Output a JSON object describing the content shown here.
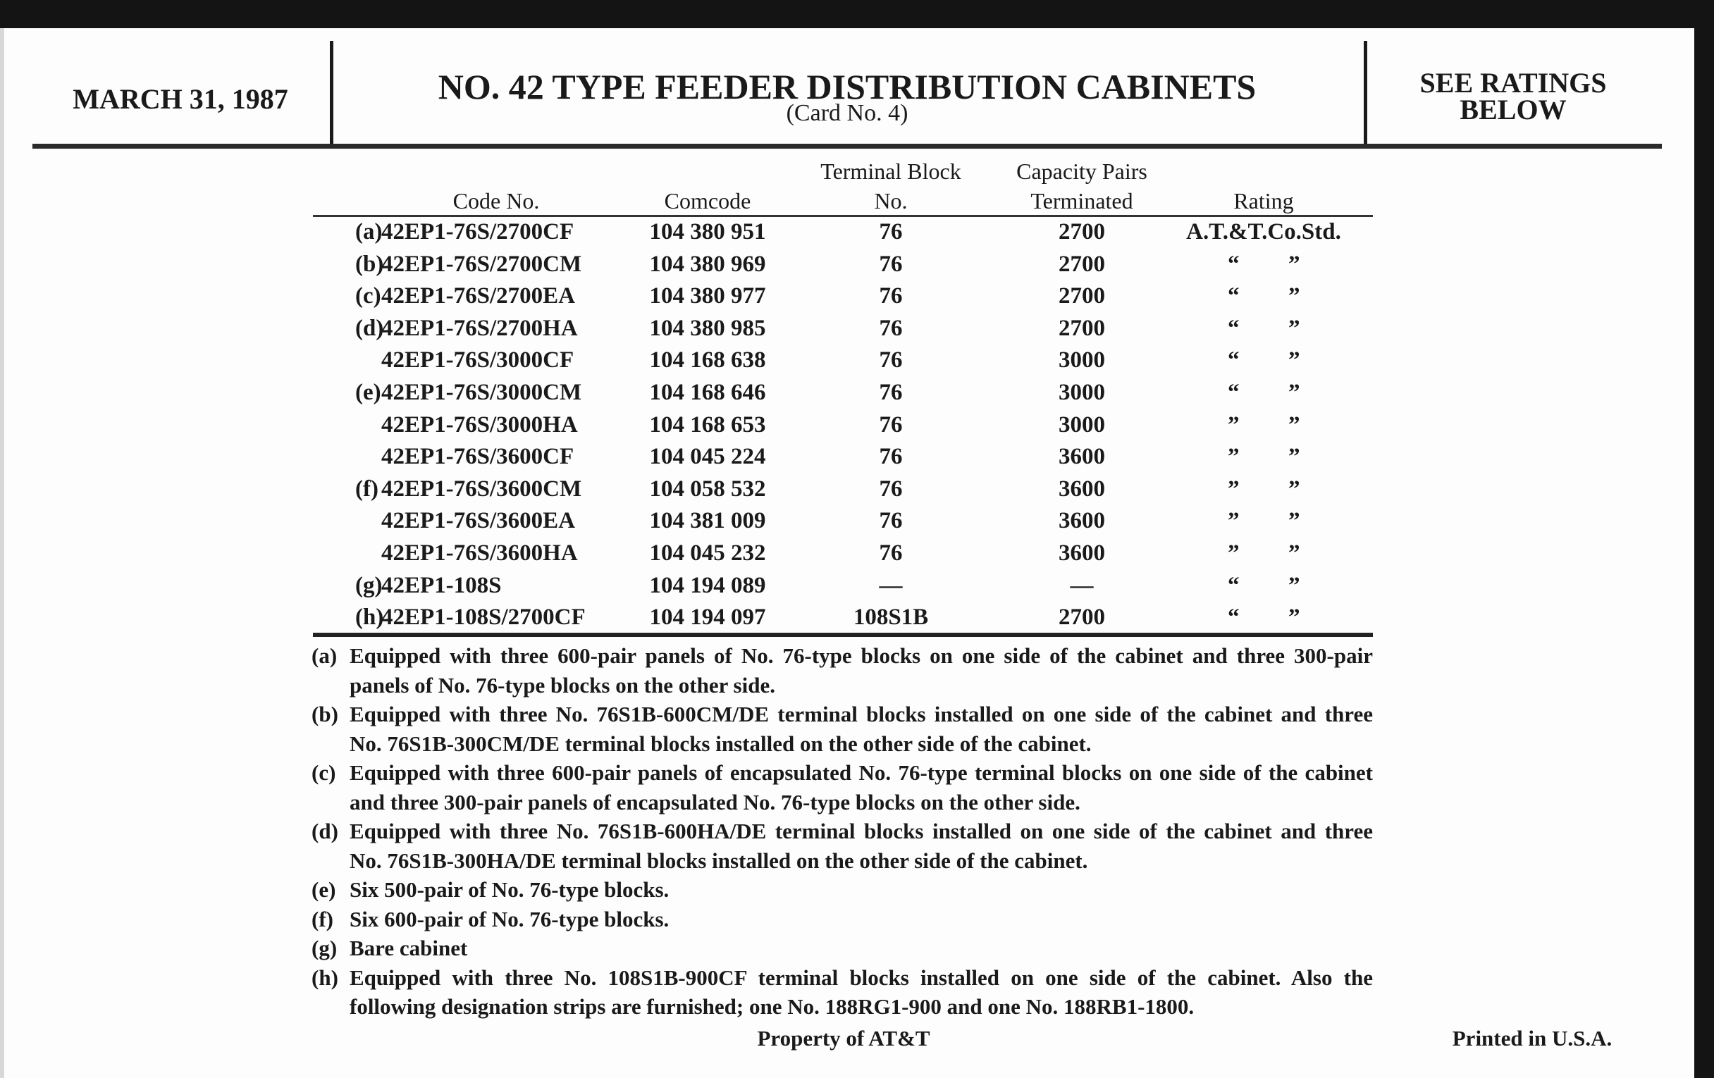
{
  "header": {
    "date": "MARCH 31, 1987",
    "title": "NO. 42 TYPE FEEDER DISTRIBUTION CABINETS",
    "subtitle": "(Card No. 4)",
    "ratings_line1": "SEE RATINGS",
    "ratings_line2": "BELOW"
  },
  "table": {
    "columns": {
      "code": "Code No.",
      "comcode": "Comcode",
      "terminal_1": "Terminal Block",
      "terminal_2": "No.",
      "capacity_1": "Capacity Pairs",
      "capacity_2": "Terminated",
      "rating": "Rating"
    },
    "rows": [
      {
        "prefix": "(a)",
        "code": "42EP1-76S/2700CF",
        "comcode": "104 380 951",
        "terminal": "76",
        "capacity": "2700",
        "rating": "A.T.&T.Co.Std.",
        "ditto": [
          "",
          ""
        ]
      },
      {
        "prefix": "(b)",
        "code": "42EP1-76S/2700CM",
        "comcode": "104 380 969",
        "terminal": "76",
        "capacity": "2700",
        "rating": "",
        "ditto": [
          "“",
          "”"
        ]
      },
      {
        "prefix": "(c)",
        "code": "42EP1-76S/2700EA",
        "comcode": "104 380 977",
        "terminal": "76",
        "capacity": "2700",
        "rating": "",
        "ditto": [
          "“",
          "”"
        ]
      },
      {
        "prefix": "(d)",
        "code": "42EP1-76S/2700HA",
        "comcode": "104 380 985",
        "terminal": "76",
        "capacity": "2700",
        "rating": "",
        "ditto": [
          "“",
          "”"
        ]
      },
      {
        "prefix": "",
        "code": "42EP1-76S/3000CF",
        "comcode": "104 168 638",
        "terminal": "76",
        "capacity": "3000",
        "rating": "",
        "ditto": [
          "“",
          "”"
        ]
      },
      {
        "prefix": "(e)",
        "code": "42EP1-76S/3000CM",
        "comcode": "104 168 646",
        "terminal": "76",
        "capacity": "3000",
        "rating": "",
        "ditto": [
          "“",
          "”"
        ]
      },
      {
        "prefix": "",
        "code": "42EP1-76S/3000HA",
        "comcode": "104 168 653",
        "terminal": "76",
        "capacity": "3000",
        "rating": "",
        "ditto": [
          "”",
          "”"
        ]
      },
      {
        "prefix": "",
        "code": "42EP1-76S/3600CF",
        "comcode": "104 045 224",
        "terminal": "76",
        "capacity": "3600",
        "rating": "",
        "ditto": [
          "”",
          "”"
        ]
      },
      {
        "prefix": "(f)",
        "code": "42EP1-76S/3600CM",
        "comcode": "104 058 532",
        "terminal": "76",
        "capacity": "3600",
        "rating": "",
        "ditto": [
          "”",
          "”"
        ]
      },
      {
        "prefix": "",
        "code": "42EP1-76S/3600EA",
        "comcode": "104 381 009",
        "terminal": "76",
        "capacity": "3600",
        "rating": "",
        "ditto": [
          "”",
          "”"
        ]
      },
      {
        "prefix": "",
        "code": "42EP1-76S/3600HA",
        "comcode": "104 045 232",
        "terminal": "76",
        "capacity": "3600",
        "rating": "",
        "ditto": [
          "”",
          "”"
        ]
      },
      {
        "prefix": "(g)",
        "code": "42EP1-108S",
        "comcode": "104 194 089",
        "terminal": "—",
        "capacity": "—",
        "rating": "",
        "ditto": [
          "“",
          "”"
        ]
      },
      {
        "prefix": "(h)",
        "code": "42EP1-108S/2700CF",
        "comcode": "104 194 097",
        "terminal": "108S1B",
        "capacity": "2700",
        "rating": "",
        "ditto": [
          "“",
          "”"
        ]
      }
    ]
  },
  "notes": [
    {
      "label": "(a)",
      "lines": [
        "Equipped with three 600-pair panels of No. 76-type blocks on one side of the cabinet and three 300-pair",
        "panels of No. 76-type blocks on the other side."
      ]
    },
    {
      "label": "(b)",
      "lines": [
        "Equipped with three No. 76S1B-600CM/DE terminal blocks installed on one side of the cabinet and three",
        "No. 76S1B-300CM/DE terminal blocks installed on the other side of the cabinet."
      ]
    },
    {
      "label": "(c)",
      "lines": [
        "Equipped with three 600-pair panels of encapsulated No. 76-type terminal blocks on one side of the cabinet",
        "and three 300-pair panels of encapsulated No. 76-type blocks on the other side."
      ]
    },
    {
      "label": "(d)",
      "lines": [
        "Equipped with three No. 76S1B-600HA/DE terminal blocks installed on one side of the cabinet and three",
        "No. 76S1B-300HA/DE terminal blocks installed on the other side of the cabinet."
      ]
    },
    {
      "label": "(e)",
      "lines": [
        "Six 500-pair of No. 76-type blocks."
      ]
    },
    {
      "label": "(f)",
      "lines": [
        "Six 600-pair of No. 76-type blocks."
      ]
    },
    {
      "label": "(g)",
      "lines": [
        "Bare cabinet"
      ]
    },
    {
      "label": "(h)",
      "lines": [
        "Equipped with three No. 108S1B-900CF terminal blocks installed on one side of the cabinet. Also the",
        "following designation strips are furnished; one No. 188RG1-900 and one No. 188RB1-1800."
      ]
    }
  ],
  "footer": {
    "property": "Property of AT&T",
    "printed": "Printed in U.S.A."
  }
}
